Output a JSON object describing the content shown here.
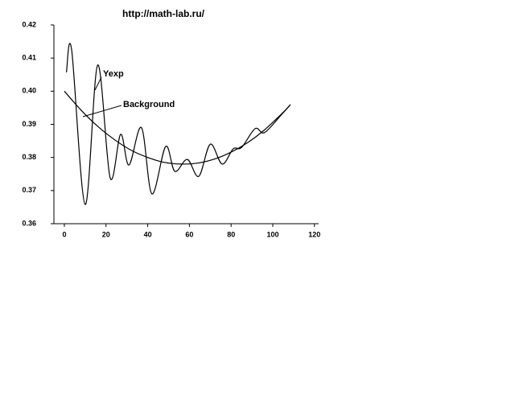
{
  "chart_data": {
    "type": "line",
    "title": "http://math-lab.ru/",
    "xlim": [
      -5,
      122
    ],
    "xticks": [
      0,
      20,
      40,
      60,
      80,
      100,
      120
    ],
    "ylim": [
      0.36,
      0.42
    ],
    "yticks": [
      0.36,
      0.37,
      0.38,
      0.39,
      {
        "value": 0.4,
        "label": "0.40"
      },
      0.41,
      0.42
    ],
    "series": [
      {
        "name": "Yexp",
        "color": "#000000",
        "x": [
          1,
          3.5,
          10,
          16,
          22,
          27,
          31,
          37,
          42,
          48.6,
          53,
          59,
          64.5,
          70,
          75.7,
          81,
          85,
          91.5,
          96,
          104,
          108.5
        ],
        "values": [
          0.4057,
          0.4125,
          0.3658,
          0.4079,
          0.3738,
          0.387,
          0.3777,
          0.389,
          0.369,
          0.3833,
          0.3758,
          0.3794,
          0.3743,
          0.384,
          0.378,
          0.3826,
          0.383,
          0.3887,
          0.3875,
          0.3928,
          0.396
        ]
      },
      {
        "name": "Background",
        "color": "#000000",
        "x": [
          0,
          8,
          16,
          24,
          32,
          40,
          48,
          56,
          64,
          72,
          80,
          88,
          96,
          104,
          108
        ],
        "values": [
          0.4,
          0.3943,
          0.3894,
          0.3854,
          0.3822,
          0.38,
          0.3785,
          0.378,
          0.3783,
          0.3795,
          0.3816,
          0.3845,
          0.3883,
          0.393,
          0.3956
        ]
      }
    ]
  }
}
